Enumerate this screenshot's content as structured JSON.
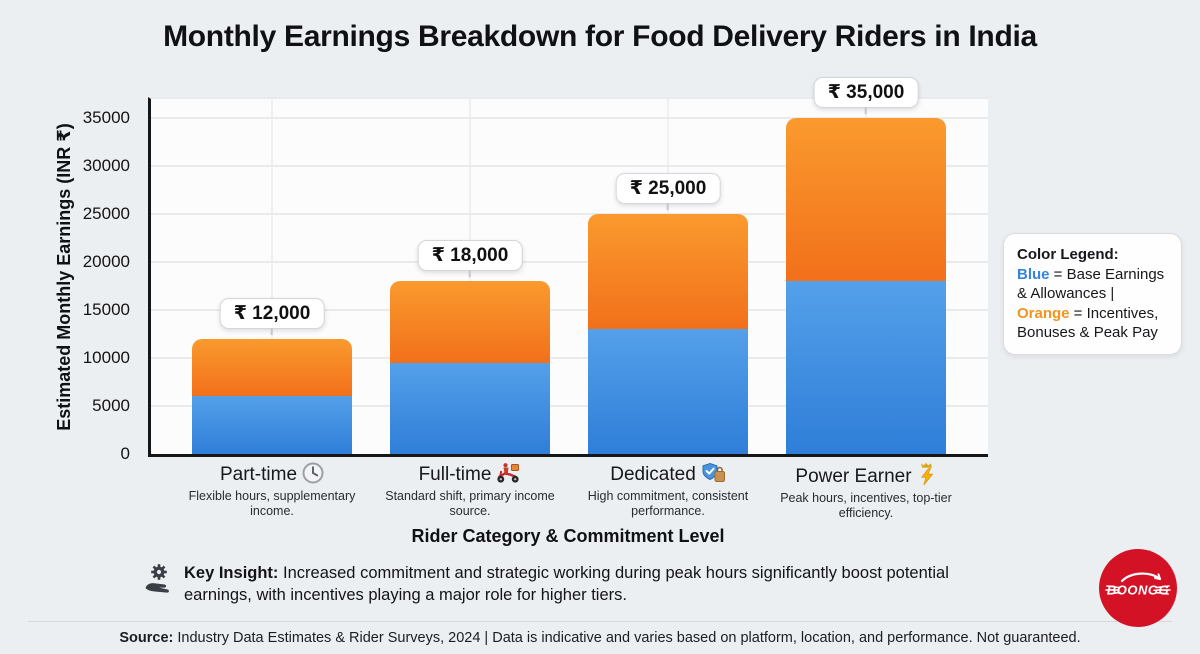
{
  "title": "Monthly Earnings Breakdown for Food Delivery Riders in India",
  "chart_data": {
    "type": "bar",
    "stacked": true,
    "title": "Monthly Earnings Breakdown for Food Delivery Riders in India",
    "xlabel": "Rider Category & Commitment Level",
    "ylabel": "Estimated Monthly Earnings (INR ₹)",
    "ylim": [
      0,
      36750
    ],
    "yticks": [
      0,
      5000,
      10000,
      15000,
      20000,
      25000,
      30000,
      35000
    ],
    "grid": true,
    "categories": [
      {
        "label": "Part-time",
        "icon": "clock-icon",
        "desc": "Flexible hours, supplementary income.",
        "total": 12000,
        "total_label": "₹ 12,000"
      },
      {
        "label": "Full-time",
        "icon": "scooter-icon",
        "desc": "Standard shift, primary income source.",
        "total": 18000,
        "total_label": "₹ 18,000"
      },
      {
        "label": "Dedicated",
        "icon": "shield-check-bag-icon",
        "desc": "High commitment, consistent performance.",
        "total": 25000,
        "total_label": "₹ 25,000"
      },
      {
        "label": "Power Earner",
        "icon": "lightning-crown-icon",
        "desc": "Peak hours, incentives, top-tier efficiency.",
        "total": 35000,
        "total_label": "₹ 35,000"
      }
    ],
    "series": [
      {
        "name": "Base Earnings & Allowances",
        "color": "#3787DB",
        "values": [
          6000,
          9500,
          13000,
          18000
        ]
      },
      {
        "name": "Incentives, Bonuses & Peak Pay",
        "color": "#F6831F",
        "values": [
          6000,
          8500,
          12000,
          17000
        ]
      }
    ]
  },
  "legend": {
    "title": "Color Legend:",
    "blue_label": "Blue",
    "blue_text": " = Base Earnings & Allowances | ",
    "orange_label": "Orange",
    "orange_text": " = Incentives, Bonuses & Peak Pay"
  },
  "insight": {
    "label": "Key Insight:",
    "text": " Increased commitment and strategic working during peak hours significantly boost potential earnings, with incentives playing a major role for higher tiers."
  },
  "source": {
    "label": "Source:",
    "text": " Industry Data Estimates & Rider Surveys, 2024 | Data is indicative and varies based on platform, location, and performance. Not guaranteed."
  },
  "logo": {
    "text": "BOONGG"
  },
  "colors": {
    "background": "#ECEFF2",
    "base_blue": "#3787DB",
    "incentive_orange": "#F6831F",
    "legend_blue_text": "#3784DC",
    "legend_orange_text": "#F2941D",
    "logo_red": "#D41226"
  }
}
